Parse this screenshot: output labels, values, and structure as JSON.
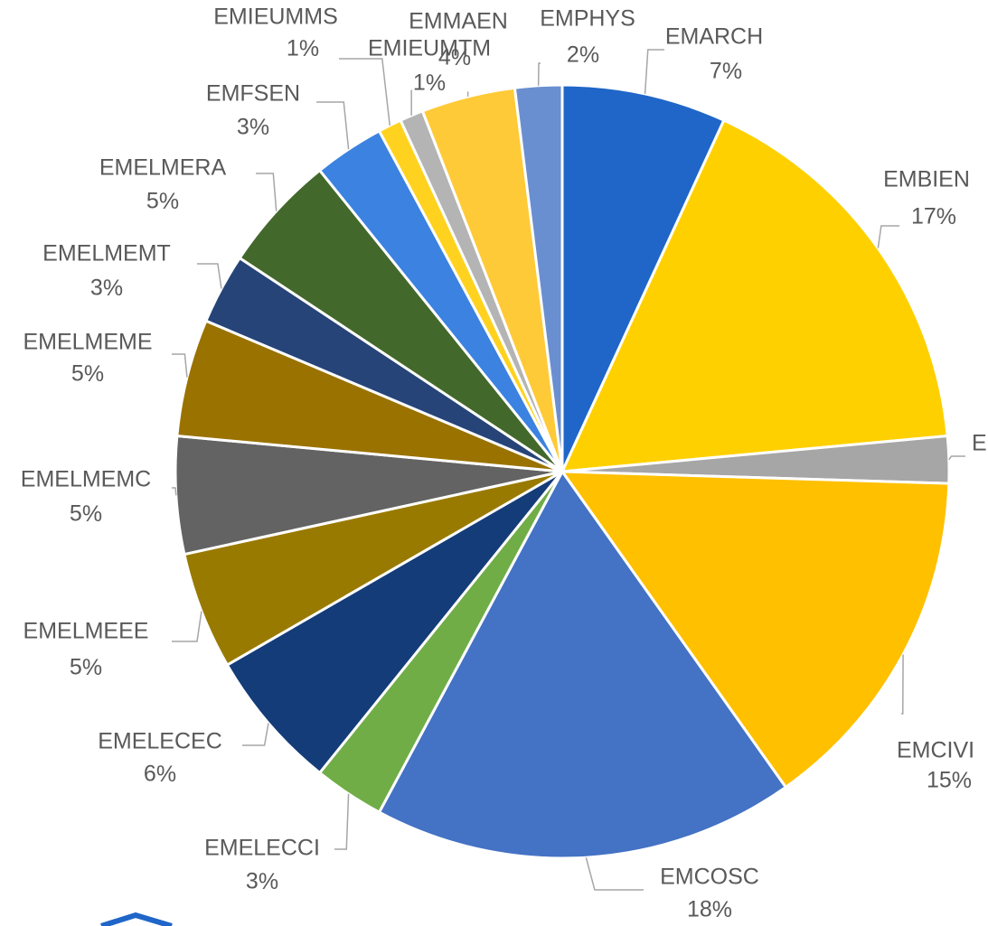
{
  "chart_data": {
    "type": "pie",
    "categories": [
      "EMARCH",
      "EMBIEN",
      "E",
      "EMCIVI",
      "EMCOSC",
      "EMELECCI",
      "EMELECEC",
      "EMELMEEE",
      "EMELMEMC",
      "EMELMEME",
      "EMELMEMT",
      "EMELMERA",
      "EMFSEN",
      "EMIEUMMS",
      "EMIEUMTM",
      "EMMAEN",
      "EMPHYS"
    ],
    "values": [
      7,
      17,
      2,
      15,
      18,
      3,
      6,
      5,
      5,
      5,
      3,
      5,
      3,
      1,
      1,
      4,
      2
    ],
    "colors": [
      "#1f66c8",
      "#ffd000",
      "#a6a6a6",
      "#ffc000",
      "#4472c4",
      "#70ad47",
      "#143c78",
      "#997a00",
      "#636363",
      "#9a7200",
      "#264478",
      "#43682b",
      "#3c82e0",
      "#ffd21f",
      "#b4b4b4",
      "#ffca38",
      "#6a8fd0"
    ]
  }
}
